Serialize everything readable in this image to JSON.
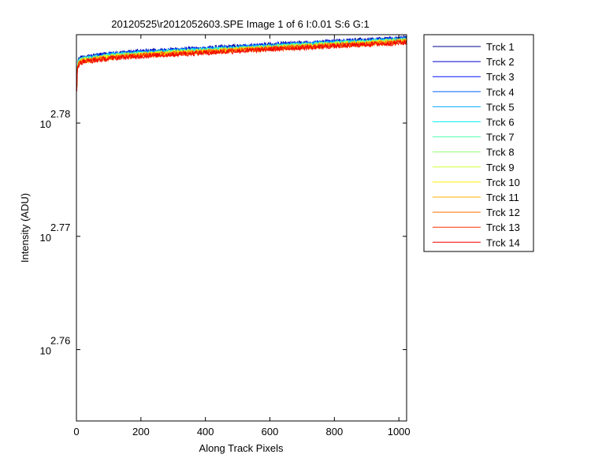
{
  "chart_data": {
    "type": "line",
    "title": "20120525\\r2012052603.SPE  Image 1 of 6  I:0.01  S:6  G:1",
    "xlabel": "Along Track Pixels",
    "ylabel": "Intensity (ADU)",
    "xlim": [
      0,
      1024
    ],
    "ylim_log10": [
      2.7537,
      2.7878
    ],
    "yscale": "log",
    "x_ticks": [
      "0",
      "200",
      "400",
      "600",
      "800",
      "1000"
    ],
    "y_ticks": [
      {
        "base": "10",
        "exp": "2.76"
      },
      {
        "base": "10",
        "exp": "2.77"
      },
      {
        "base": "10",
        "exp": "2.78"
      }
    ],
    "legend_position": "outside-top-right",
    "series": [
      {
        "name": "Trck 1",
        "color": "#00008f"
      },
      {
        "name": "Trck 2",
        "color": "#0000cf"
      },
      {
        "name": "Trck 3",
        "color": "#0010ff"
      },
      {
        "name": "Trck 4",
        "color": "#0060ff"
      },
      {
        "name": "Trck 5",
        "color": "#00aaff"
      },
      {
        "name": "Trck 6",
        "color": "#10efef"
      },
      {
        "name": "Trck 7",
        "color": "#50ffaf"
      },
      {
        "name": "Trck 8",
        "color": "#90ff70"
      },
      {
        "name": "Trck 9",
        "color": "#d0ff30"
      },
      {
        "name": "Trck 10",
        "color": "#ffef00"
      },
      {
        "name": "Trck 11",
        "color": "#ffb000"
      },
      {
        "name": "Trck 12",
        "color": "#ff7000"
      },
      {
        "name": "Trck 13",
        "color": "#ff3000"
      },
      {
        "name": "Trck 14",
        "color": "#ef0000"
      }
    ],
    "trend_log10": {
      "x": [
        0,
        3,
        6,
        10,
        20,
        50,
        100,
        200,
        400,
        600,
        800,
        1024
      ],
      "y": [
        2.7818,
        2.7848,
        2.7851,
        2.7853,
        2.7854,
        2.7855,
        2.7857,
        2.7859,
        2.7862,
        2.7865,
        2.7868,
        2.7871
      ]
    }
  }
}
